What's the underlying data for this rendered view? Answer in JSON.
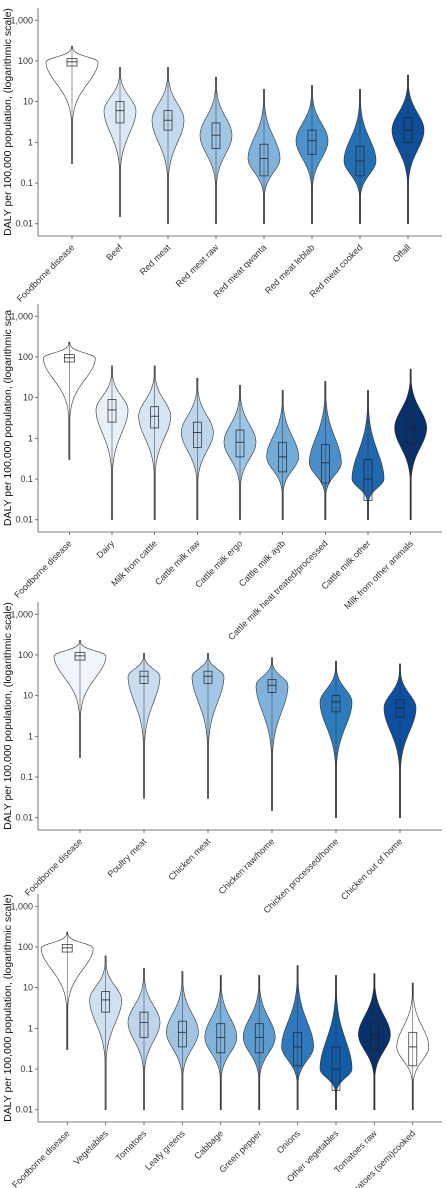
{
  "chart_data": [
    {
      "type": "violin",
      "ylabel": "DALY per 100,000 population, (logarithmic scale)",
      "y_scale": "log",
      "ylim": [
        0.005,
        2000
      ],
      "y_ticks": [
        "0.01",
        "0.1",
        "1",
        "10",
        "100",
        "1,000"
      ],
      "categories": [
        "Foodborne disease",
        "Beef",
        "Red meat",
        "Red  meat raw",
        "Red meat qwanta",
        "Red meat leblab",
        "Red meat cooked",
        "Offall"
      ],
      "median": [
        95,
        6,
        3.5,
        1.5,
        0.4,
        1.1,
        0.35,
        2.0
      ],
      "q1": [
        75,
        3,
        2,
        0.7,
        0.15,
        0.5,
        0.15,
        1.0
      ],
      "q3": [
        115,
        10,
        6,
        3,
        0.9,
        2,
        0.8,
        4
      ],
      "min": [
        0.3,
        0.015,
        0.01,
        0.01,
        0.01,
        0.01,
        0.01,
        0.01
      ],
      "max": [
        230,
        70,
        70,
        40,
        20,
        25,
        20,
        45
      ],
      "colors": [
        "#ffffff",
        "#dbe8f5",
        "#c3d9ee",
        "#a0c6e6",
        "#7fb3de",
        "#4a93cc",
        "#2470b5",
        "#0e4f99"
      ]
    },
    {
      "type": "violin",
      "ylabel": "DALY per 100,000 population, (logarithmic sca",
      "y_scale": "log",
      "ylim": [
        0.005,
        2000
      ],
      "y_ticks": [
        "0.01",
        "0.1",
        "1",
        "10",
        "100",
        "1,000"
      ],
      "categories": [
        "Foodborne disease",
        "Dairy",
        "Milk from cattle",
        "Cattle milk raw",
        "Cattle milk ergo",
        "Cattle milk ayib",
        "Cattle milk heat treated/processed",
        "Cattle milk other",
        "Milk from other animals"
      ],
      "median": [
        95,
        5,
        3.5,
        1.4,
        0.8,
        0.35,
        0.25,
        0.1,
        1.8
      ],
      "q1": [
        75,
        2.5,
        1.8,
        0.6,
        0.35,
        0.15,
        0.08,
        0.03,
        0.7
      ],
      "q3": [
        115,
        9,
        6,
        2.5,
        1.6,
        0.8,
        0.7,
        0.3,
        3
      ],
      "min": [
        0.3,
        0.01,
        0.01,
        0.01,
        0.01,
        0.01,
        0.01,
        0.01,
        0.01
      ],
      "max": [
        230,
        60,
        60,
        30,
        20,
        15,
        25,
        15,
        50
      ],
      "colors": [
        "#ffffff",
        "#e8f0f9",
        "#d6e5f3",
        "#bdd6ec",
        "#9cc4e4",
        "#72aad8",
        "#4a8fcb",
        "#2068b0",
        "#08306b"
      ]
    },
    {
      "type": "violin",
      "ylabel": "DALY per 100,000 population, (logarithmic scale)",
      "y_scale": "log",
      "ylim": [
        0.005,
        2000
      ],
      "y_ticks": [
        "0.01",
        "0.1",
        "1",
        "10",
        "100",
        "1,000"
      ],
      "categories": [
        "Foodborne disease",
        "Poultry meat",
        "Chicken meat",
        "Chicken raw/home",
        "Chicken processed/home",
        "Chicken out of home"
      ],
      "median": [
        95,
        30,
        30,
        18,
        7,
        5
      ],
      "q1": [
        75,
        20,
        20,
        12,
        4,
        3
      ],
      "q3": [
        115,
        40,
        40,
        25,
        10,
        8
      ],
      "min": [
        0.3,
        0.03,
        0.03,
        0.015,
        0.01,
        0.01
      ],
      "max": [
        230,
        110,
        110,
        85,
        70,
        60
      ],
      "colors": [
        "#f0f5fc",
        "#c7dcef",
        "#a3c8e7",
        "#7eb2dd",
        "#2e7cc0",
        "#0d4fa0"
      ]
    },
    {
      "type": "violin",
      "ylabel": "DALY per 100,000 population, (logarithmic scale)",
      "y_scale": "log",
      "ylim": [
        0.005,
        2000
      ],
      "y_ticks": [
        "0.01",
        "0.1",
        "1",
        "10",
        "100",
        "1,000"
      ],
      "categories": [
        "Foodborne disease",
        "Vegetables",
        "Tomatoes",
        "Leafy greens",
        "Cabbage",
        "Green pepper",
        "Onions",
        "Other vegetables",
        "Tomatoes raw",
        "Tomatoes (semi)cooked"
      ],
      "median": [
        95,
        5,
        1.4,
        0.8,
        0.6,
        0.6,
        0.35,
        0.1,
        0.7,
        0.35
      ],
      "q1": [
        75,
        2.5,
        0.6,
        0.35,
        0.25,
        0.25,
        0.12,
        0.03,
        0.3,
        0.12
      ],
      "q3": [
        115,
        8,
        2.5,
        1.5,
        1.3,
        1.3,
        0.8,
        0.35,
        1.4,
        0.8
      ],
      "min": [
        0.3,
        0.01,
        0.01,
        0.01,
        0.01,
        0.01,
        0.01,
        0.01,
        0.01,
        0.01
      ],
      "max": [
        230,
        60,
        30,
        25,
        20,
        20,
        35,
        20,
        22,
        13
      ],
      "colors": [
        "#ffffff",
        "#cfe0f2",
        "#bcd5ec",
        "#9fc4e4",
        "#80b2dc",
        "#5b9bd0",
        "#2f78bd",
        "#135ca8",
        "#08306b",
        "#ffffff"
      ]
    }
  ]
}
